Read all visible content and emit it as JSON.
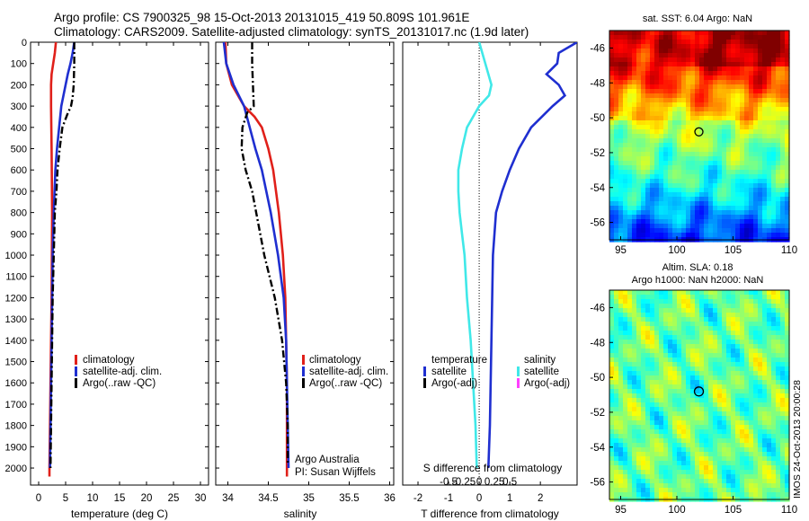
{
  "header": {
    "title_line1": "Argo profile: CS 7900325_98 15-Oct-2013 20131015_419 50.809S 101.961E",
    "title_line2": "Climatology: CARS2009. Satellite-adjusted climatology: synTS_20131017.nc (1.9d later)"
  },
  "watermark": "IMOS 24-Oct-2013 20:00:28",
  "colors": {
    "climatology": "#e0201a",
    "satellite": "#1f2fd0",
    "argo": "#000000",
    "salinity_sat": "#40e8e8",
    "salinity_argo": "#ff40ff"
  },
  "chart_data": [
    {
      "type": "line",
      "panel": "temperature",
      "xlabel": "temperature (deg C)",
      "ylabel": "",
      "xlim": [
        -1.5,
        31.5
      ],
      "ylim": [
        2080,
        0
      ],
      "xticks": [
        0,
        5,
        10,
        15,
        20,
        25,
        30
      ],
      "yticks": [
        0,
        100,
        200,
        300,
        400,
        500,
        600,
        700,
        800,
        900,
        1000,
        1100,
        1200,
        1300,
        1400,
        1500,
        1600,
        1700,
        1800,
        1900,
        2000
      ],
      "legend": [
        "climatology",
        "satellite-adj. clim.",
        "Argo(..raw -QC)"
      ],
      "legend_position": "lower-right",
      "series": [
        {
          "name": "climatology",
          "style": "solid",
          "depth": [
            0,
            50,
            100,
            150,
            200,
            300,
            500,
            800,
            1200,
            1600,
            2000,
            2040
          ],
          "values": [
            3.2,
            3.0,
            2.7,
            2.4,
            2.3,
            2.3,
            2.4,
            2.5,
            2.4,
            2.2,
            2.0,
            2.0
          ]
        },
        {
          "name": "satellite-adj. clim.",
          "style": "solid",
          "depth": [
            0,
            50,
            100,
            150,
            200,
            300,
            400,
            500,
            600,
            800,
            1000,
            1400,
            1800,
            2000
          ],
          "values": [
            6.6,
            6.3,
            5.9,
            5.4,
            5.0,
            4.2,
            3.8,
            3.4,
            3.1,
            2.8,
            2.6,
            2.4,
            2.2,
            2.1
          ]
        },
        {
          "name": "Argo(..raw -QC)",
          "style": "dashdot",
          "depth": [
            0,
            100,
            200,
            260,
            300,
            340,
            400,
            500,
            600,
            700,
            800,
            1000,
            1200,
            1400,
            1600,
            1800,
            2000
          ],
          "values": [
            6.6,
            6.6,
            6.5,
            6.3,
            6.0,
            5.3,
            4.4,
            3.9,
            3.5,
            3.3,
            3.0,
            2.8,
            2.6,
            2.5,
            2.4,
            2.3,
            2.2
          ]
        }
      ]
    },
    {
      "type": "line",
      "panel": "salinity",
      "xlabel": "salinity",
      "ylabel": "",
      "xlim": [
        33.85,
        36.05
      ],
      "ylim": [
        2080,
        0
      ],
      "xticks": [
        34,
        34.5,
        35,
        35.5,
        36
      ],
      "legend": [
        "climatology",
        "satellite-adj. clim.",
        "Argo(..raw -QC)"
      ],
      "legend_position": "lower-right",
      "annotations": [
        "Argo Australia",
        "PI: Susan Wijffels"
      ],
      "series": [
        {
          "name": "climatology",
          "style": "solid",
          "depth": [
            0,
            100,
            200,
            300,
            350,
            400,
            500,
            600,
            800,
            1000,
            1200,
            1400,
            1600,
            1800,
            2000,
            2040
          ],
          "values": [
            33.97,
            33.98,
            34.05,
            34.2,
            34.33,
            34.42,
            34.5,
            34.56,
            34.63,
            34.68,
            34.71,
            34.72,
            34.73,
            34.73,
            34.73,
            34.73
          ]
        },
        {
          "name": "satellite-adj. clim.",
          "style": "solid",
          "depth": [
            0,
            100,
            200,
            300,
            400,
            500,
            600,
            800,
            1000,
            1200,
            1400,
            1600,
            1800,
            2000
          ],
          "values": [
            33.95,
            33.98,
            34.07,
            34.2,
            34.27,
            34.34,
            34.42,
            34.53,
            34.62,
            34.69,
            34.72,
            34.73,
            34.74,
            34.75
          ]
        },
        {
          "name": "Argo(..raw -QC)",
          "style": "dashdot",
          "depth": [
            0,
            100,
            200,
            300,
            330,
            400,
            500,
            600,
            700,
            800,
            1000,
            1200,
            1400,
            1600,
            1800,
            1980
          ],
          "values": [
            34.3,
            34.3,
            34.31,
            34.32,
            34.24,
            34.18,
            34.17,
            34.22,
            34.3,
            34.35,
            34.45,
            34.58,
            34.67,
            34.72,
            34.74,
            34.74
          ]
        }
      ]
    },
    {
      "type": "line",
      "panel": "difference",
      "xlabel": "T difference from climatology",
      "top_label": "S difference from climatology",
      "xlim": [
        -2.5,
        3.2
      ],
      "ylim": [
        2080,
        0
      ],
      "xticks": [
        -2,
        -1,
        0,
        1,
        2
      ],
      "top_xticks": [
        "-0.5",
        "-0.25",
        "0",
        "0.25",
        "0.5"
      ],
      "legend_headers": [
        "temperature",
        "salinity"
      ],
      "legend": [
        "satellite",
        "Argo(-adj)",
        "satellite",
        "Argo(-adj)"
      ],
      "series": [
        {
          "name": "satellite",
          "variable": "temperature",
          "depth": [
            0,
            50,
            100,
            150,
            200,
            250,
            300,
            400,
            500,
            600,
            700,
            800,
            1000,
            1400,
            1800,
            2000
          ],
          "values": [
            3.2,
            2.6,
            2.55,
            2.2,
            2.6,
            2.8,
            2.4,
            1.7,
            1.3,
            1.0,
            0.75,
            0.55,
            0.45,
            0.4,
            0.35,
            0.3
          ]
        },
        {
          "name": "satellite",
          "variable": "salinity",
          "depth": [
            0,
            100,
            200,
            250,
            300,
            400,
            500,
            600,
            700,
            800,
            900,
            1000,
            1200,
            1400,
            1600,
            1800,
            2000
          ],
          "values": [
            0.0,
            0.05,
            0.1,
            0.08,
            0.0,
            -0.1,
            -0.14,
            -0.17,
            -0.17,
            -0.16,
            -0.14,
            -0.12,
            -0.1,
            -0.07,
            -0.05,
            -0.03,
            -0.02
          ]
        }
      ]
    },
    {
      "type": "heatmap",
      "panel": "sst-map",
      "title": "sat. SST: 6.04  Argo: NaN",
      "xlim": [
        94,
        110
      ],
      "ylim": [
        -57,
        -45
      ],
      "xticks": [
        95,
        100,
        105,
        110
      ],
      "yticks": [
        -46,
        -48,
        -50,
        -52,
        -54,
        -56
      ],
      "marker": {
        "lon": 101.961,
        "lat": -50.809
      }
    },
    {
      "type": "heatmap",
      "panel": "sla-map",
      "title": "Altim. SLA: 0.18",
      "subtitle": "Argo h1000: NaN h2000: NaN",
      "xlim": [
        94,
        110
      ],
      "ylim": [
        -57,
        -45
      ],
      "xticks": [
        95,
        100,
        105,
        110
      ],
      "yticks": [
        -46,
        -48,
        -50,
        -52,
        -54,
        -56
      ],
      "marker": {
        "lon": 101.961,
        "lat": -50.809
      }
    }
  ]
}
